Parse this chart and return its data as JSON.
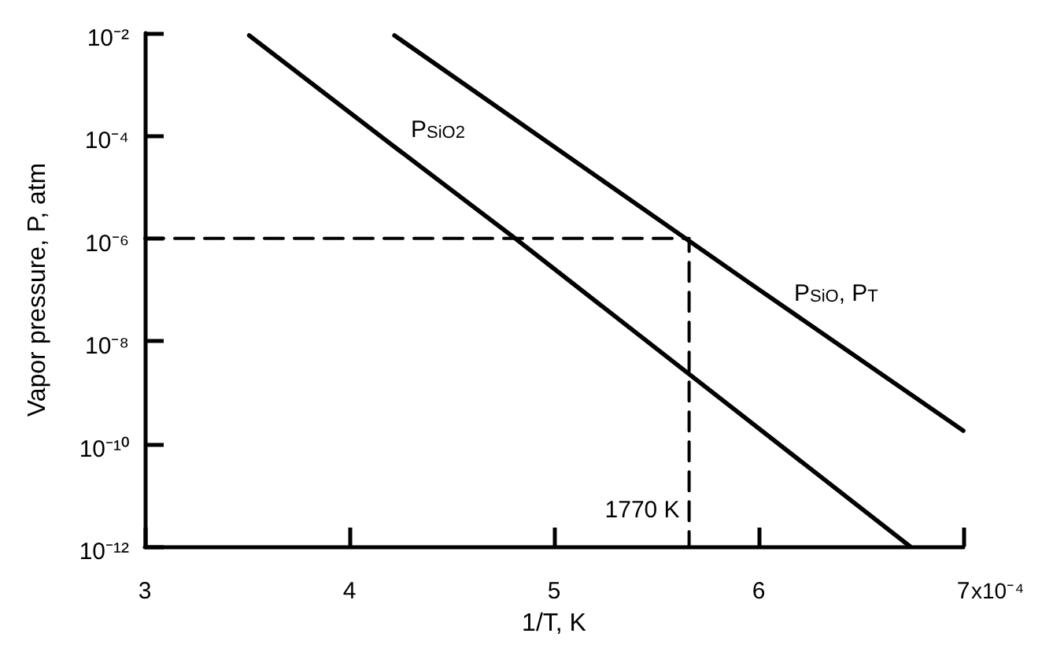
{
  "chart_data": {
    "type": "line",
    "xlabel": "1/T, K",
    "ylabel": "Vapor pressure, P, atm",
    "log": "y",
    "grid": false,
    "legend": false,
    "marker": "none",
    "xlim": [
      3,
      7
    ],
    "xticks": [
      3,
      4,
      5,
      6,
      7
    ],
    "ylim": [
      1e-12,
      0.01
    ],
    "yticks": [
      {
        "value": 1e-12,
        "label": "10⁻¹²"
      },
      {
        "value": 1e-10,
        "label": "10⁻¹⁰"
      },
      {
        "value": 1e-08,
        "label": "10⁻⁸"
      },
      {
        "value": 1e-06,
        "label": "10⁻⁶"
      },
      {
        "value": 0.0001,
        "label": "10⁻⁴"
      },
      {
        "value": 0.01,
        "label": "10⁻²"
      }
    ],
    "series": [
      {
        "name": "P$_{SiO2}$",
        "color": "#000000",
        "line_style": "solid",
        "x": [
          3.51,
          4.2,
          4.81,
          6.74
        ],
        "values": [
          0.009,
          7e-05,
          1e-06,
          1e-12
        ]
      },
      {
        "name": "P$_{SiO}$, P$_{T}$",
        "color": "#000000",
        "line_style": "solid",
        "x": [
          4.22,
          5.95,
          7
        ],
        "values": [
          0.009,
          1.4e-07,
          1.8e-10
        ]
      },
      {
        "color": "#000000",
        "line_style": "dashed",
        "x": [
          3,
          5.66,
          5.66
        ],
        "values": [
          1e-06,
          1e-06,
          1e-12
        ]
      }
    ],
    "annotations": [
      {
        "text": "1770 K",
        "x": 5.66,
        "y": 5e-12
      },
      "x10⁻⁴"
    ]
  }
}
